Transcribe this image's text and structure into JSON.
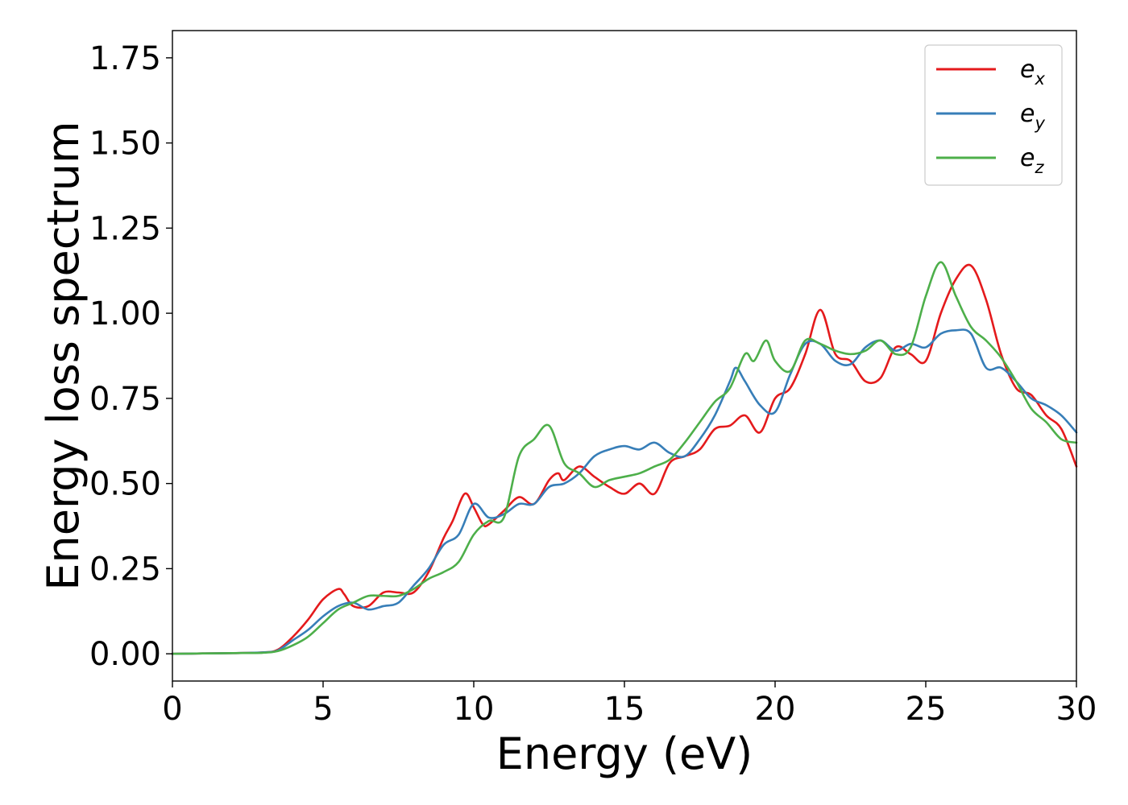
{
  "chart_data": {
    "type": "line",
    "xlabel": "Energy (eV)",
    "ylabel": "Energy loss spectrum",
    "xlim": [
      0,
      30
    ],
    "ylim": [
      -0.08,
      1.83
    ],
    "xticks": [
      0,
      5,
      10,
      15,
      20,
      25,
      30
    ],
    "xtick_labels": [
      "0",
      "5",
      "10",
      "15",
      "20",
      "25",
      "30"
    ],
    "yticks": [
      0,
      0.25,
      0.5,
      0.75,
      1.0,
      1.25,
      1.5,
      1.75
    ],
    "ytick_labels": [
      "0.00",
      "0.25",
      "0.50",
      "0.75",
      "1.00",
      "1.25",
      "1.50",
      "1.75"
    ],
    "grid": false,
    "legend_position": "top-right",
    "series": [
      {
        "name": "e_x",
        "label_base": "e",
        "label_sub": "x",
        "color": "#e41a1c",
        "x": [
          0,
          1,
          2,
          3,
          3.5,
          4,
          4.5,
          5,
          5.5,
          5.7,
          6,
          6.5,
          7,
          7.5,
          8,
          8.5,
          9,
          9.3,
          9.7,
          10,
          10.3,
          10.5,
          11,
          11.5,
          12,
          12.5,
          12.8,
          13,
          13.5,
          14,
          14.5,
          15,
          15.5,
          16,
          16.5,
          17,
          17.5,
          18,
          18.5,
          19,
          19.5,
          20,
          20.5,
          21,
          21.5,
          22,
          22.5,
          23,
          23.5,
          24,
          24.5,
          25,
          25.5,
          26,
          26.5,
          27,
          27.5,
          28,
          28.5,
          29,
          29.5,
          30
        ],
        "y": [
          0.0,
          0.001,
          0.002,
          0.004,
          0.012,
          0.05,
          0.1,
          0.16,
          0.19,
          0.175,
          0.14,
          0.14,
          0.18,
          0.18,
          0.18,
          0.24,
          0.34,
          0.39,
          0.47,
          0.43,
          0.38,
          0.38,
          0.42,
          0.46,
          0.44,
          0.51,
          0.53,
          0.51,
          0.55,
          0.52,
          0.49,
          0.47,
          0.5,
          0.47,
          0.56,
          0.58,
          0.6,
          0.66,
          0.67,
          0.7,
          0.65,
          0.75,
          0.78,
          0.88,
          1.01,
          0.88,
          0.86,
          0.8,
          0.81,
          0.9,
          0.88,
          0.86,
          1.0,
          1.1,
          1.14,
          1.04,
          0.88,
          0.78,
          0.76,
          0.7,
          0.66,
          0.55
        ]
      },
      {
        "name": "e_y",
        "label_base": "e",
        "label_sub": "y",
        "color": "#377eb8",
        "x": [
          0,
          1,
          2,
          3,
          3.5,
          4,
          4.5,
          5,
          5.5,
          6,
          6.5,
          7,
          7.5,
          8,
          8.5,
          9,
          9.5,
          10,
          10.5,
          11,
          11.5,
          12,
          12.5,
          13,
          13.5,
          14,
          14.5,
          15,
          15.5,
          16,
          16.5,
          17,
          17.5,
          18,
          18.5,
          18.7,
          19,
          19.5,
          20,
          20.5,
          21,
          21.5,
          22,
          22.5,
          23,
          23.5,
          24,
          24.5,
          25,
          25.5,
          26,
          26.5,
          27,
          27.5,
          28,
          28.5,
          29,
          29.5,
          30
        ],
        "y": [
          0.0,
          0.001,
          0.002,
          0.004,
          0.01,
          0.04,
          0.07,
          0.11,
          0.14,
          0.15,
          0.13,
          0.14,
          0.15,
          0.2,
          0.25,
          0.32,
          0.35,
          0.44,
          0.4,
          0.41,
          0.44,
          0.44,
          0.49,
          0.5,
          0.53,
          0.58,
          0.6,
          0.61,
          0.6,
          0.62,
          0.59,
          0.58,
          0.63,
          0.7,
          0.8,
          0.84,
          0.8,
          0.73,
          0.71,
          0.82,
          0.91,
          0.91,
          0.86,
          0.85,
          0.9,
          0.92,
          0.89,
          0.91,
          0.9,
          0.94,
          0.95,
          0.94,
          0.84,
          0.84,
          0.8,
          0.75,
          0.73,
          0.7,
          0.65
        ]
      },
      {
        "name": "e_z",
        "label_base": "e",
        "label_sub": "z",
        "color": "#4daf4a",
        "x": [
          0,
          1,
          2,
          3,
          3.5,
          4,
          4.5,
          5,
          5.5,
          6,
          6.5,
          7,
          7.5,
          8,
          8.5,
          9,
          9.5,
          10,
          10.5,
          11,
          11.5,
          12,
          12.5,
          13,
          13.5,
          14,
          14.5,
          15,
          15.5,
          16,
          16.5,
          17,
          17.5,
          18,
          18.5,
          19,
          19.3,
          19.7,
          20,
          20.5,
          21,
          21.5,
          22,
          22.5,
          23,
          23.5,
          24,
          24.5,
          25,
          25.5,
          26,
          26.5,
          27,
          27.5,
          28,
          28.5,
          29,
          29.5,
          30
        ],
        "y": [
          0.0,
          0.001,
          0.002,
          0.003,
          0.008,
          0.025,
          0.05,
          0.09,
          0.13,
          0.15,
          0.17,
          0.17,
          0.17,
          0.19,
          0.22,
          0.24,
          0.27,
          0.35,
          0.39,
          0.4,
          0.58,
          0.63,
          0.67,
          0.56,
          0.53,
          0.49,
          0.51,
          0.52,
          0.53,
          0.55,
          0.57,
          0.62,
          0.68,
          0.74,
          0.78,
          0.88,
          0.86,
          0.92,
          0.86,
          0.83,
          0.92,
          0.91,
          0.89,
          0.88,
          0.89,
          0.92,
          0.88,
          0.9,
          1.05,
          1.15,
          1.05,
          0.96,
          0.92,
          0.87,
          0.8,
          0.72,
          0.68,
          0.63,
          0.62
        ]
      }
    ]
  }
}
